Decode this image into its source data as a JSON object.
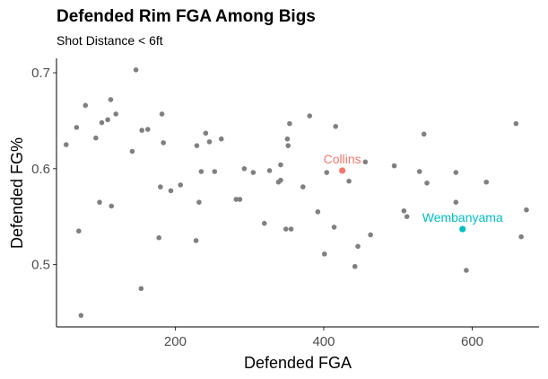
{
  "chart_data": {
    "type": "scatter",
    "title": "Defended Rim FGA Among Bigs",
    "subtitle": "Shot Distance < 6ft",
    "xlabel": "Defended FGA",
    "ylabel": "Defended FG%",
    "xlim": [
      40,
      690
    ],
    "ylim": [
      0.435,
      0.715
    ],
    "x_ticks": [
      200,
      400,
      600
    ],
    "y_ticks": [
      0.5,
      0.6,
      0.7
    ],
    "x_tick_labels": [
      "200",
      "400",
      "600"
    ],
    "y_tick_labels": [
      "0.5",
      "0.6",
      "0.7"
    ],
    "grid": false,
    "default_color": "#808080",
    "points": [
      {
        "x": 53,
        "y": 0.625
      },
      {
        "x": 67,
        "y": 0.643
      },
      {
        "x": 70,
        "y": 0.535
      },
      {
        "x": 73,
        "y": 0.447
      },
      {
        "x": 79,
        "y": 0.666
      },
      {
        "x": 93,
        "y": 0.632
      },
      {
        "x": 98,
        "y": 0.565
      },
      {
        "x": 101,
        "y": 0.648
      },
      {
        "x": 109,
        "y": 0.651
      },
      {
        "x": 113,
        "y": 0.672
      },
      {
        "x": 114,
        "y": 0.561
      },
      {
        "x": 120,
        "y": 0.657
      },
      {
        "x": 142,
        "y": 0.618
      },
      {
        "x": 147,
        "y": 0.703
      },
      {
        "x": 154,
        "y": 0.475
      },
      {
        "x": 155,
        "y": 0.64
      },
      {
        "x": 163,
        "y": 0.641
      },
      {
        "x": 178,
        "y": 0.528
      },
      {
        "x": 180,
        "y": 0.581
      },
      {
        "x": 182,
        "y": 0.657
      },
      {
        "x": 184,
        "y": 0.627
      },
      {
        "x": 194,
        "y": 0.577
      },
      {
        "x": 207,
        "y": 0.583
      },
      {
        "x": 228,
        "y": 0.525
      },
      {
        "x": 229,
        "y": 0.624
      },
      {
        "x": 232,
        "y": 0.565
      },
      {
        "x": 235,
        "y": 0.597
      },
      {
        "x": 241,
        "y": 0.637
      },
      {
        "x": 246,
        "y": 0.628
      },
      {
        "x": 253,
        "y": 0.597
      },
      {
        "x": 262,
        "y": 0.631
      },
      {
        "x": 282,
        "y": 0.568
      },
      {
        "x": 287,
        "y": 0.568
      },
      {
        "x": 293,
        "y": 0.6
      },
      {
        "x": 305,
        "y": 0.596
      },
      {
        "x": 320,
        "y": 0.543
      },
      {
        "x": 327,
        "y": 0.598
      },
      {
        "x": 339,
        "y": 0.586
      },
      {
        "x": 342,
        "y": 0.588
      },
      {
        "x": 342,
        "y": 0.604
      },
      {
        "x": 349,
        "y": 0.537
      },
      {
        "x": 351,
        "y": 0.631
      },
      {
        "x": 352,
        "y": 0.624
      },
      {
        "x": 354,
        "y": 0.647
      },
      {
        "x": 356,
        "y": 0.537
      },
      {
        "x": 372,
        "y": 0.581
      },
      {
        "x": 381,
        "y": 0.655
      },
      {
        "x": 392,
        "y": 0.555
      },
      {
        "x": 401,
        "y": 0.511
      },
      {
        "x": 404,
        "y": 0.596
      },
      {
        "x": 414,
        "y": 0.539
      },
      {
        "x": 416,
        "y": 0.644
      },
      {
        "x": 434,
        "y": 0.587
      },
      {
        "x": 442,
        "y": 0.498
      },
      {
        "x": 446,
        "y": 0.519
      },
      {
        "x": 456,
        "y": 0.607
      },
      {
        "x": 463,
        "y": 0.531
      },
      {
        "x": 495,
        "y": 0.603
      },
      {
        "x": 508,
        "y": 0.556
      },
      {
        "x": 512,
        "y": 0.55
      },
      {
        "x": 529,
        "y": 0.597
      },
      {
        "x": 535,
        "y": 0.636
      },
      {
        "x": 539,
        "y": 0.585
      },
      {
        "x": 578,
        "y": 0.596
      },
      {
        "x": 578,
        "y": 0.565
      },
      {
        "x": 592,
        "y": 0.494
      },
      {
        "x": 619,
        "y": 0.586
      },
      {
        "x": 659,
        "y": 0.647
      },
      {
        "x": 666,
        "y": 0.529
      },
      {
        "x": 673,
        "y": 0.557
      }
    ],
    "highlights": [
      {
        "label": "Collins",
        "x": 425,
        "y": 0.598,
        "color": "#f8766d"
      },
      {
        "label": "Wembanyama",
        "x": 587,
        "y": 0.537,
        "color": "#00bfc4"
      }
    ]
  }
}
